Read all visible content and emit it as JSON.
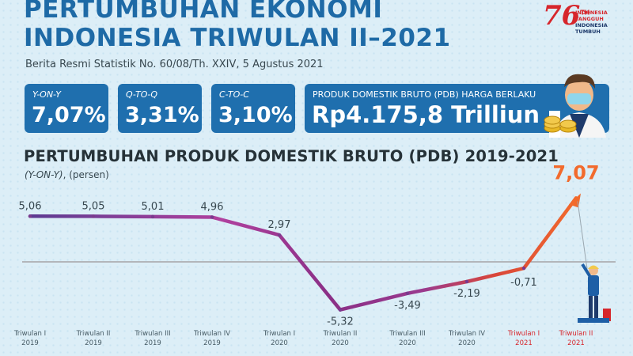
{
  "header": {
    "title_line1": "PERTUMBUHAN EKONOMI",
    "title_line2": "INDONESIA TRIWULAN II–2021",
    "subtitle": "Berita Resmi Statistik No. 60/08/Th. XXIV, 5 Agustus 2021"
  },
  "logo": {
    "number": "76",
    "superscript": "TH",
    "line1": "INDONESIA",
    "line2": "TANGGUH",
    "line3": "INDONESIA",
    "line4": "TUMBUH"
  },
  "stats": {
    "yoy_label": "Y-ON-Y",
    "yoy_value": "7,07%",
    "qtq_label": "Q-TO-Q",
    "qtq_value": "3,31%",
    "ctc_label": "C-TO-C",
    "ctc_value": "3,10%",
    "gdp_label": "PRODUK DOMESTIK BRUTO (PDB) HARGA BERLAKU",
    "gdp_value": "Rp4.175,8 Trilliun"
  },
  "colors": {
    "title": "#1e6aa6",
    "box": "#1f6fae",
    "line_start": "#6b3a8c",
    "line_mid": "#a83a9c",
    "line_end": "#f26a2c",
    "highlight": "#f26a2c"
  },
  "chart_data": {
    "type": "line",
    "title": "PERTUMBUHAN PRODUK DOMESTIK BRUTO (PDB) 2019-2021",
    "subtitle_italic": "(Y-ON-Y)",
    "subtitle_rest": ", (persen)",
    "categories": [
      [
        "Triwulan I",
        "2019"
      ],
      [
        "Triwulan II",
        "2019"
      ],
      [
        "Triwulan III",
        "2019"
      ],
      [
        "Triwulan IV",
        "2019"
      ],
      [
        "Triwulan I",
        "2020"
      ],
      [
        "Triwulan II",
        "2020"
      ],
      [
        "Triwulan III",
        "2020"
      ],
      [
        "Triwulan IV",
        "2020"
      ],
      [
        "Triwulan I",
        "2021"
      ],
      [
        "Triwulan II",
        "2021"
      ]
    ],
    "values": [
      5.06,
      5.05,
      5.01,
      4.96,
      2.97,
      -5.32,
      -3.49,
      -2.19,
      -0.71,
      7.07
    ],
    "labels": [
      "5,06",
      "5,05",
      "5,01",
      "4,96",
      "2,97",
      "-5,32",
      "-3,49",
      "-2,19",
      "-0,71",
      "7,07"
    ],
    "baseline": 0,
    "grid": false
  }
}
